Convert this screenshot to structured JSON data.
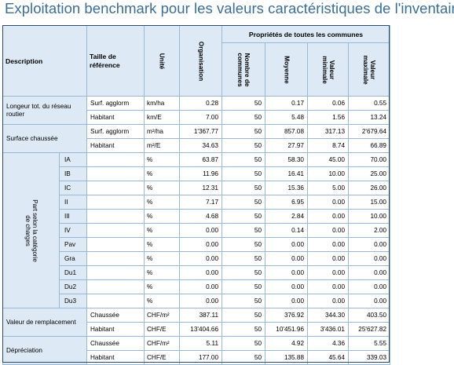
{
  "title": "Exploitation benchmark pour les valeurs caractéristiques de l'inventaire",
  "headers": {
    "description": "Description",
    "taille": "Taille de référence",
    "unite": "Unité",
    "organisation": "Organisation",
    "group": "Propriétés de toutes les communes",
    "nombre": "Nombre de communes",
    "moyenne": "Moyenne",
    "valeur_min": "Valeur minimale",
    "valeur_max": "Valeur maximale"
  },
  "groups": {
    "longueur": "Longeur tot. du réseau routier",
    "surface": "Surface chaussée",
    "part": "Part selon la catégorie de charges",
    "valeur_remplacement": "Valeur de remplacement",
    "depreciation": "Dépréciation"
  },
  "rows": [
    {
      "sub": "",
      "ref": "Surf. agglorm",
      "unit": "km/ha",
      "org": "0.28",
      "n": "50",
      "moy": "0.17",
      "min": "0.06",
      "max": "0.55"
    },
    {
      "sub": "",
      "ref": "Habitant",
      "unit": "km/E",
      "org": "7.00",
      "n": "50",
      "moy": "5.48",
      "min": "1.56",
      "max": "13.24"
    },
    {
      "sub": "",
      "ref": "Surf. agglorm",
      "unit": "m²/ha",
      "org": "1'367.77",
      "n": "50",
      "moy": "857.08",
      "min": "317.13",
      "max": "2'679.64"
    },
    {
      "sub": "",
      "ref": "Habitant",
      "unit": "m²/E",
      "org": "34.63",
      "n": "50",
      "moy": "27.97",
      "min": "8.74",
      "max": "66.89"
    },
    {
      "sub": "IA",
      "ref": "",
      "unit": "%",
      "org": "63.87",
      "n": "50",
      "moy": "58.30",
      "min": "45.00",
      "max": "70.00"
    },
    {
      "sub": "IB",
      "ref": "",
      "unit": "%",
      "org": "11.96",
      "n": "50",
      "moy": "16.41",
      "min": "10.00",
      "max": "25.00"
    },
    {
      "sub": "IC",
      "ref": "",
      "unit": "%",
      "org": "12.31",
      "n": "50",
      "moy": "15.36",
      "min": "5.00",
      "max": "26.00"
    },
    {
      "sub": "II",
      "ref": "",
      "unit": "%",
      "org": "7.17",
      "n": "50",
      "moy": "6.95",
      "min": "0.00",
      "max": "15.00"
    },
    {
      "sub": "III",
      "ref": "",
      "unit": "%",
      "org": "4.68",
      "n": "50",
      "moy": "2.84",
      "min": "0.00",
      "max": "10.00"
    },
    {
      "sub": "IV",
      "ref": "",
      "unit": "%",
      "org": "0.00",
      "n": "50",
      "moy": "0.14",
      "min": "0.00",
      "max": "2.00"
    },
    {
      "sub": "Pav",
      "ref": "",
      "unit": "%",
      "org": "0.00",
      "n": "50",
      "moy": "0.00",
      "min": "0.00",
      "max": "0.00"
    },
    {
      "sub": "Gra",
      "ref": "",
      "unit": "%",
      "org": "0.00",
      "n": "50",
      "moy": "0.00",
      "min": "0.00",
      "max": "0.00"
    },
    {
      "sub": "Du1",
      "ref": "",
      "unit": "%",
      "org": "0.00",
      "n": "50",
      "moy": "0.00",
      "min": "0.00",
      "max": "0.00"
    },
    {
      "sub": "Du2",
      "ref": "",
      "unit": "%",
      "org": "0.00",
      "n": "50",
      "moy": "0.00",
      "min": "0.00",
      "max": "0.00"
    },
    {
      "sub": "Du3",
      "ref": "",
      "unit": "%",
      "org": "0.00",
      "n": "50",
      "moy": "0.00",
      "min": "0.00",
      "max": "0.00"
    },
    {
      "sub": "",
      "ref": "Chaussée",
      "unit": "CHF/m²",
      "org": "387.11",
      "n": "50",
      "moy": "376.92",
      "min": "344.30",
      "max": "403.50"
    },
    {
      "sub": "",
      "ref": "Habitant",
      "unit": "CHF/E",
      "org": "13'404.66",
      "n": "50",
      "moy": "10'451.96",
      "min": "3'436.01",
      "max": "25'627.82"
    },
    {
      "sub": "",
      "ref": "Chaussée",
      "unit": "CHF/m²",
      "org": "5.11",
      "n": "50",
      "moy": "4.92",
      "min": "4.36",
      "max": "5.55"
    },
    {
      "sub": "",
      "ref": "Habitant",
      "unit": "CHF/E",
      "org": "177.00",
      "n": "50",
      "moy": "135.88",
      "min": "45.64",
      "max": "339.03"
    }
  ]
}
